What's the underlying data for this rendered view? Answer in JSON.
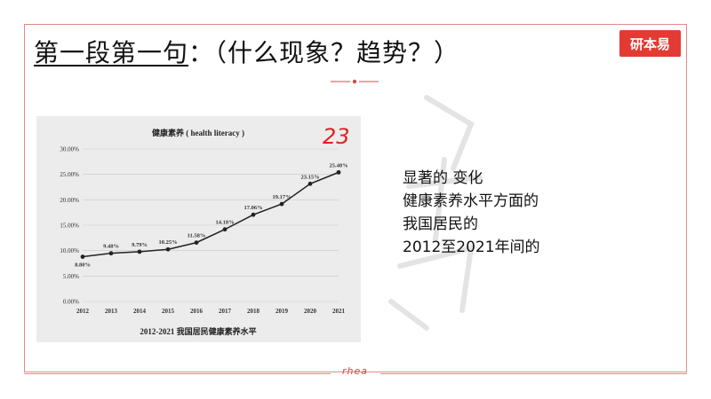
{
  "slide": {
    "title_underlined": "第一段第一句",
    "title_rest": "：（什么现象？趋势？）",
    "logo_text": "研本易",
    "footer": "rhea"
  },
  "side_text": [
    "显著的 变化",
    "健康素养水平方面的",
    "我国居民的",
    "2012至2021年间的"
  ],
  "handwritten_note": "23",
  "colors": {
    "frame": "#e38a8a",
    "logo_bg": "#e33b34",
    "handwriting": "#e02020"
  },
  "chart_data": {
    "type": "line",
    "title": "健康素养 ( health literacy )",
    "caption": "2012-2021 我国居民健康素养水平",
    "categories": [
      "2012",
      "2013",
      "2014",
      "2015",
      "2016",
      "2017",
      "2018",
      "2019",
      "2020",
      "2021"
    ],
    "values": [
      8.8,
      9.48,
      9.79,
      10.25,
      11.58,
      14.18,
      17.06,
      19.17,
      23.15,
      25.4
    ],
    "data_labels": [
      "8.80%",
      "9.48%",
      "9.79%",
      "10.25%",
      "11.58%",
      "14.18%",
      "17.06%",
      "19.17%",
      "23.15%",
      "25.40%"
    ],
    "yticks": [
      "0.00%",
      "5.00%",
      "10.00%",
      "15.00%",
      "20.00%",
      "25.00%",
      "30.00%"
    ],
    "ylim": [
      0,
      30
    ],
    "grid": true,
    "legend": "none"
  }
}
